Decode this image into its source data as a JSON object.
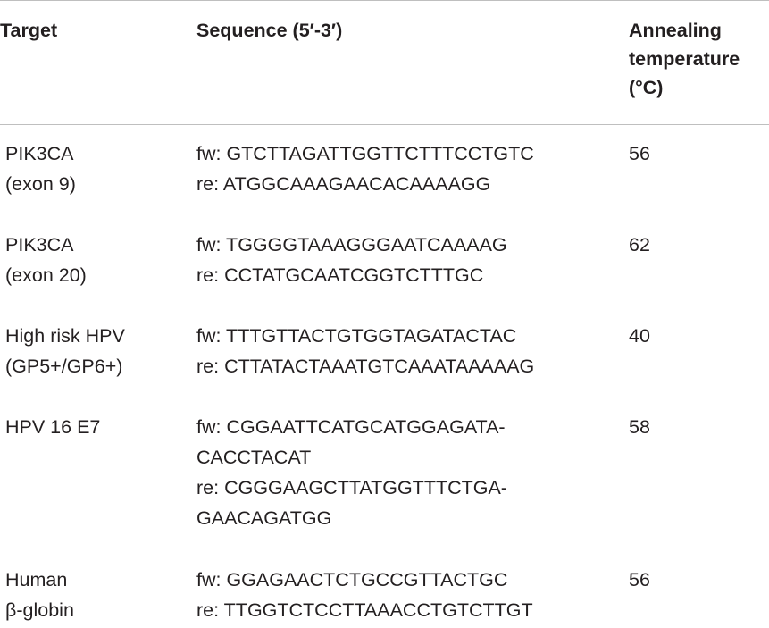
{
  "table": {
    "headers": {
      "target": "Target",
      "sequence": "Sequence (5′-3′)",
      "annealing": [
        "Annealing",
        "temperature",
        "(°C)"
      ]
    },
    "rows": [
      {
        "target": [
          "PIK3CA",
          "(exon 9)"
        ],
        "sequence": [
          "fw: GTCTTAGATTGGTTCTTTCCTGTC",
          "re: ATGGCAAAGAACACAAAAGG"
        ],
        "temp": "56"
      },
      {
        "target": [
          "PIK3CA",
          "(exon 20)"
        ],
        "sequence": [
          "fw: TGGGGTAAAGGGAATCAAAAG",
          "re: CCTATGCAATCGGTCTTTGC"
        ],
        "temp": "62"
      },
      {
        "target": [
          "High risk HPV",
          "(GP5+/GP6+)"
        ],
        "sequence": [
          "fw: TTTGTTACTGTGGTAGATACTAC",
          "re: CTTATACTAAATGTCAAATAAAAAG"
        ],
        "temp": "40"
      },
      {
        "target": [
          "HPV 16 E7"
        ],
        "sequence": [
          "fw: CGGAATTCATGCATGGAGATA-",
          "CACCTACAT",
          "re: CGGGAAGCTTATGGTTTCTGA-",
          "GAACAGATGG"
        ],
        "temp": "58"
      },
      {
        "target": [
          "Human",
          "β-globin"
        ],
        "sequence": [
          "fw: GGAGAACTCTGCCGTTACTGC",
          "re: TTGGTCTCCTTAAACCTGTCTTGT"
        ],
        "temp": "56"
      }
    ]
  }
}
